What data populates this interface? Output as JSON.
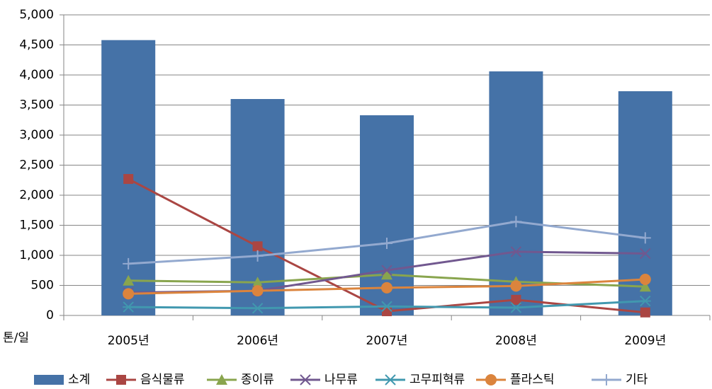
{
  "chart_data": {
    "type": "bar-line",
    "y_label": "톤/일",
    "categories": [
      "2005년",
      "2006년",
      "2007년",
      "2008년",
      "2009년"
    ],
    "ylim": [
      0,
      5000
    ],
    "yticks": [
      0,
      500,
      {
        "value": 1000,
        "label": "1,000"
      },
      {
        "value": 1500,
        "label": "1,500"
      },
      {
        "value": 2000,
        "label": "2,000"
      },
      {
        "value": 2500,
        "label": "2,500"
      },
      {
        "value": 3000,
        "label": "3,000"
      },
      {
        "value": 3500,
        "label": "3,500"
      },
      {
        "value": 4000,
        "label": "4,000"
      },
      {
        "value": 4500,
        "label": "4,500"
      },
      {
        "value": 5000,
        "label": "5,000"
      }
    ],
    "grid": true,
    "legend": "bottom",
    "series": [
      {
        "name": "소계",
        "type": "bar",
        "color": "#4572a7",
        "values": [
          4580,
          3600,
          3330,
          4060,
          3730
        ]
      },
      {
        "name": "음식물류",
        "type": "line",
        "marker": "square",
        "color": "#aa4643",
        "values": [
          2270,
          1150,
          70,
          260,
          50
        ]
      },
      {
        "name": "종이류",
        "type": "line",
        "marker": "triangle",
        "color": "#89a54e",
        "values": [
          580,
          550,
          680,
          560,
          480
        ]
      },
      {
        "name": "나무류",
        "type": "line",
        "marker": "x",
        "color": "#71588f",
        "values": [
          380,
          410,
          750,
          1060,
          1030
        ]
      },
      {
        "name": "고무피혁류",
        "type": "line",
        "marker": "star",
        "color": "#4198af",
        "values": [
          140,
          120,
          150,
          130,
          240
        ]
      },
      {
        "name": "플라스틱",
        "type": "line",
        "marker": "circle",
        "color": "#db843d",
        "values": [
          360,
          410,
          460,
          490,
          600
        ]
      },
      {
        "name": "기타",
        "type": "line",
        "marker": "plus",
        "color": "#93a9cf",
        "values": [
          860,
          990,
          1200,
          1560,
          1290
        ]
      }
    ]
  }
}
